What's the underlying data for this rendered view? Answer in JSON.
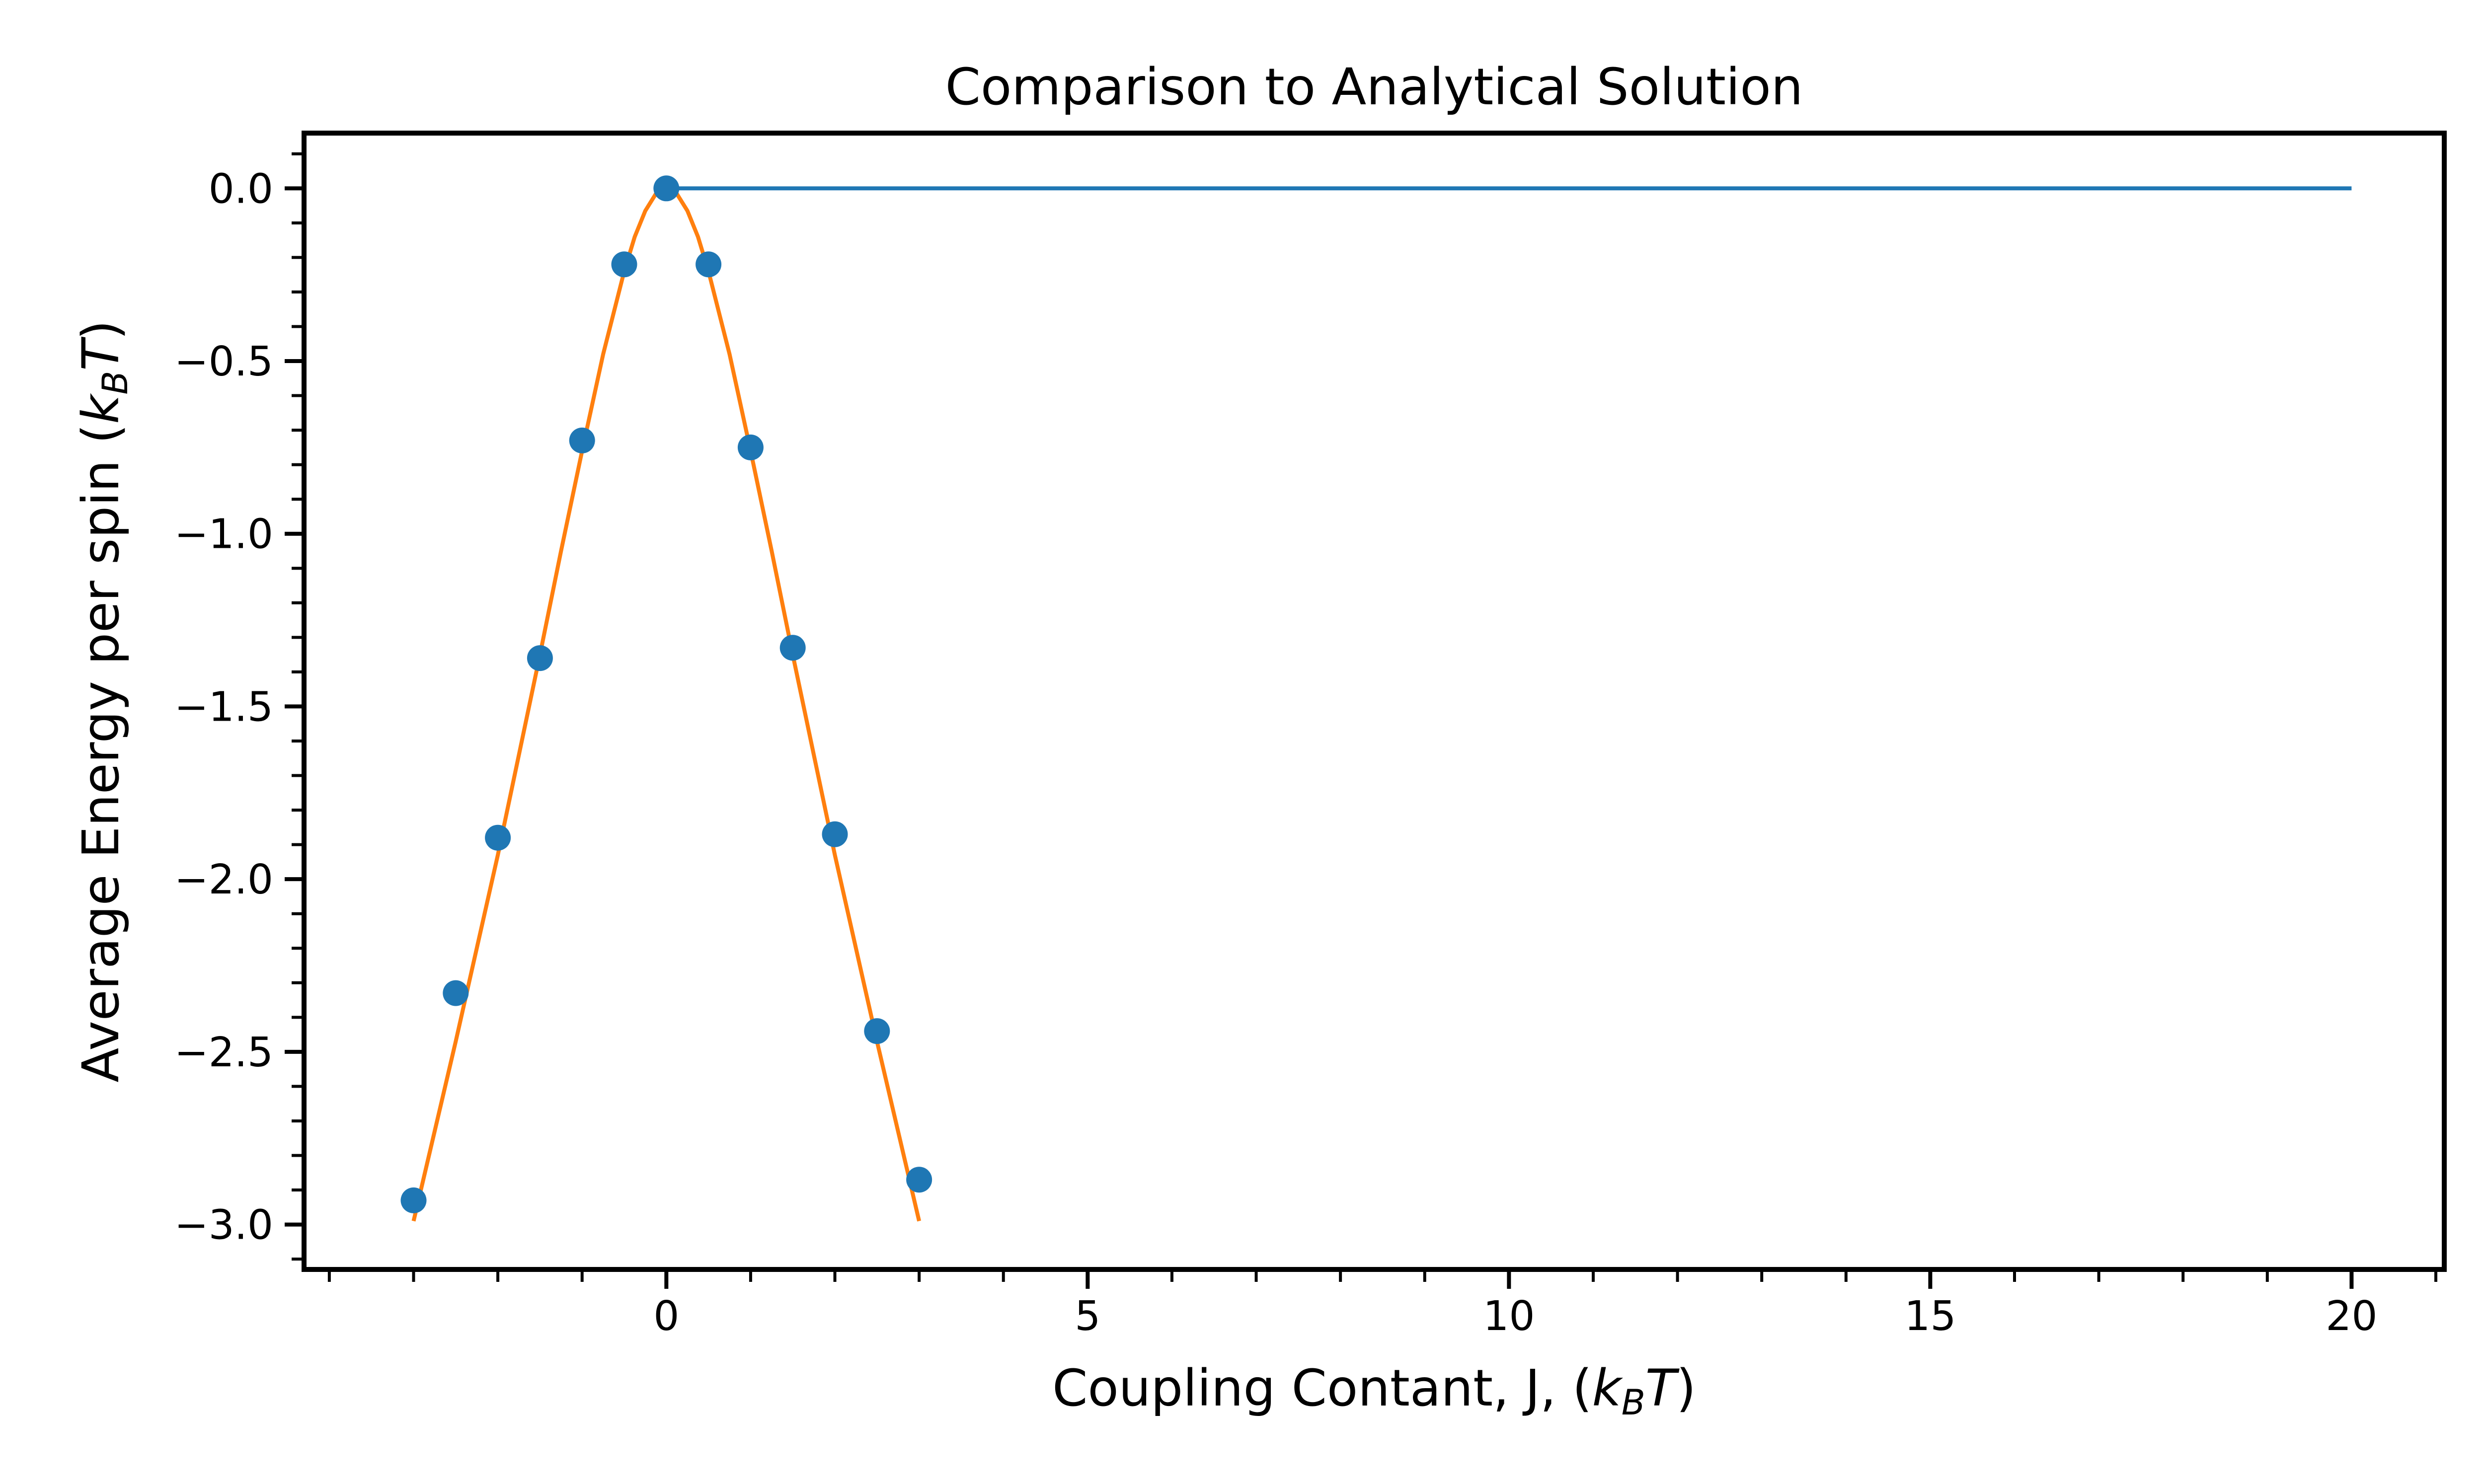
{
  "chart_data": {
    "type": "line",
    "title": "Comparison to Analytical Solution",
    "xlabel": "Coupling Contant, J, (k_BT)",
    "ylabel": "Average Energy per spin (k_BT)",
    "xlabel_parts": {
      "main": "Coupling Contant, J, (",
      "k": "k",
      "sub": "B",
      "t": "T",
      "close": ")"
    },
    "ylabel_parts": {
      "main": "Average Energy per spin (",
      "k": "k",
      "sub": "B",
      "t": "T",
      "close": ")"
    },
    "xlim": [
      -4.3,
      21.1
    ],
    "ylim": [
      -3.13,
      0.16
    ],
    "xticks": [
      0,
      5,
      10,
      15,
      20
    ],
    "xtick_labels": [
      "0",
      "5",
      "10",
      "15",
      "20"
    ],
    "yticks": [
      0.0,
      -0.5,
      -1.0,
      -1.5,
      -2.0,
      -2.5,
      -3.0
    ],
    "ytick_labels": [
      "0.0",
      "−0.5",
      "−1.0",
      "−1.5",
      "−2.0",
      "−2.5",
      "−3.0"
    ],
    "grid": false,
    "legend": "none",
    "series": [
      {
        "kind": "scatter",
        "color": "#1f77b4",
        "x": [
          -3.0,
          -2.5,
          -2.0,
          -1.5,
          -1.0,
          -0.5,
          0.0,
          0.5,
          1.0,
          1.5,
          2.0,
          2.5,
          3.0
        ],
        "y": [
          -2.93,
          -2.33,
          -1.88,
          -1.36,
          -0.73,
          -0.22,
          0.0,
          -0.22,
          -0.75,
          -1.33,
          -1.87,
          -2.44,
          -2.87
        ]
      },
      {
        "kind": "line",
        "color": "#1f77b4",
        "x": [
          0.0,
          20.0
        ],
        "y": [
          0.0,
          0.0
        ]
      },
      {
        "kind": "line",
        "color": "#ff7f0e",
        "x": [
          -3.0,
          -2.75,
          -2.5,
          -2.25,
          -2.0,
          -1.75,
          -1.5,
          -1.25,
          -1.0,
          -0.75,
          -0.5,
          -0.375,
          -0.25,
          -0.125,
          0.0,
          0.125,
          0.25,
          0.375,
          0.5,
          0.75,
          1.0,
          1.25,
          1.5,
          1.75,
          2.0,
          2.25,
          2.5,
          2.75,
          3.0
        ],
        "y": [
          -2.99,
          -2.73,
          -2.47,
          -2.2,
          -1.93,
          -1.64,
          -1.35,
          -1.05,
          -0.76,
          -0.48,
          -0.24,
          -0.14,
          -0.065,
          -0.016,
          0.0,
          -0.016,
          -0.065,
          -0.14,
          -0.24,
          -0.48,
          -0.76,
          -1.05,
          -1.35,
          -1.64,
          -1.93,
          -2.2,
          -2.47,
          -2.73,
          -2.99
        ]
      }
    ]
  }
}
